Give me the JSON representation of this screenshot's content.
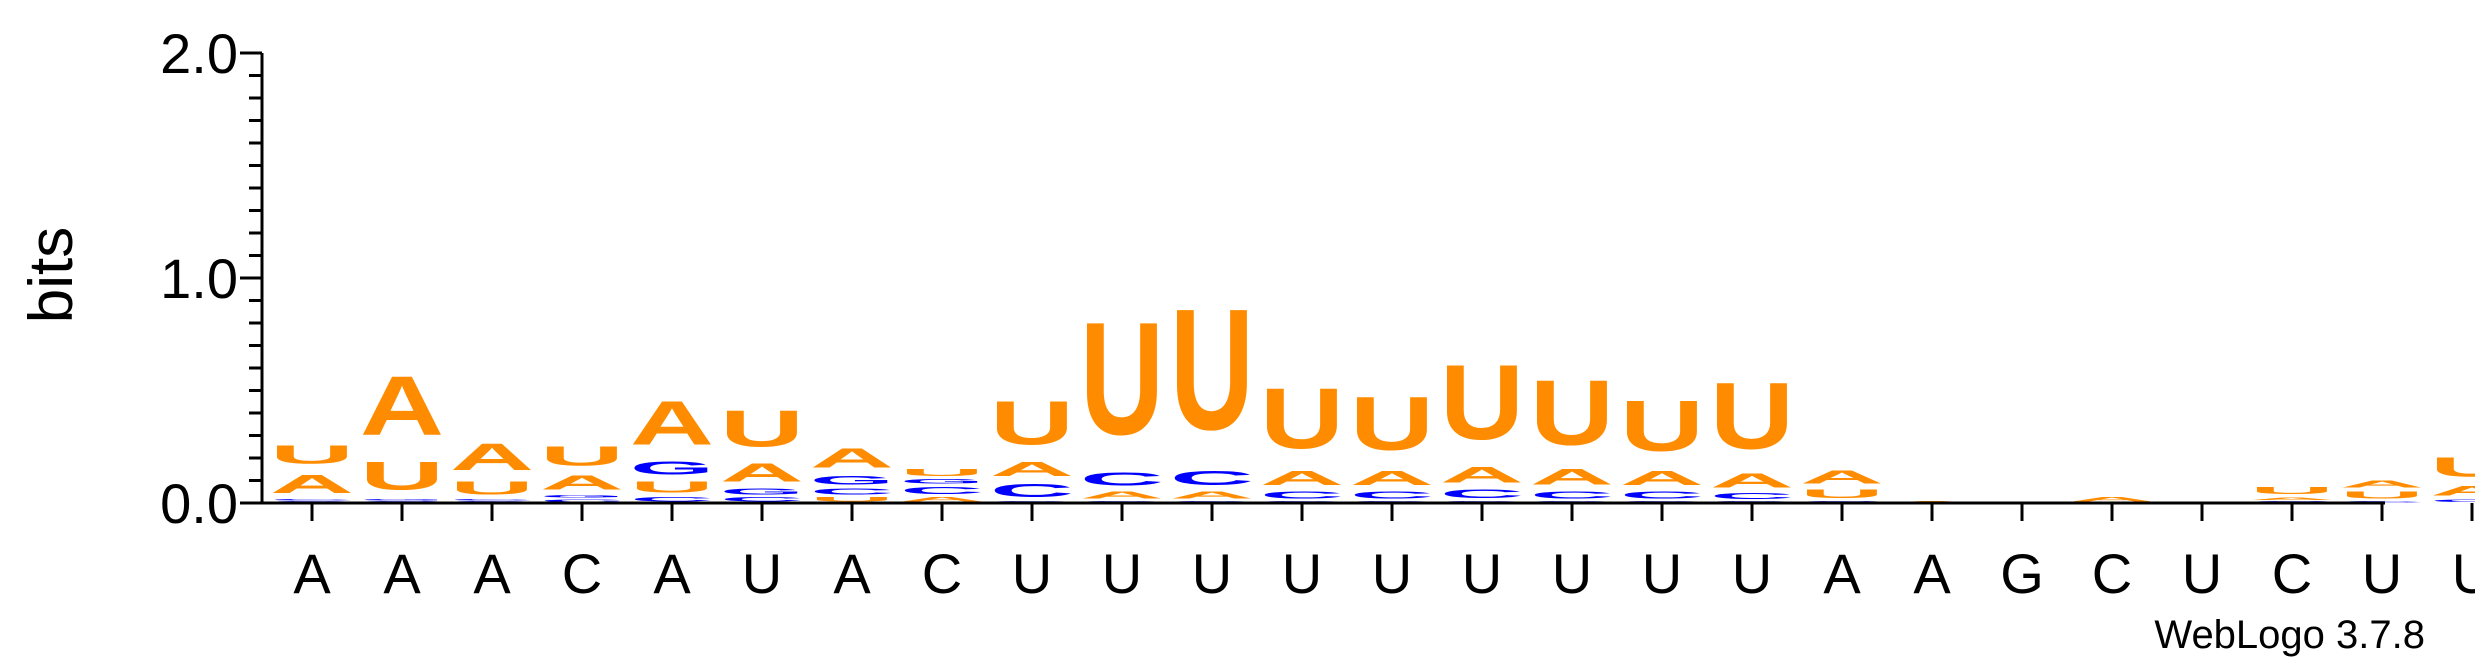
{
  "chart_data": {
    "type": "sequence-logo",
    "ylabel": "bits",
    "ylim": [
      0,
      2.0
    ],
    "yticks": [
      "0.0",
      "1.0",
      "2.0"
    ],
    "footer": "WebLogo 3.7.8",
    "colors": {
      "A": "#ff8c00",
      "U": "#ff8c00",
      "C": "#0000ff",
      "G": "#0000ff"
    },
    "positions": [
      {
        "label": "A",
        "stack": [
          {
            "base": "G",
            "bits": 0.01
          },
          {
            "base": "C",
            "bits": 0.01
          },
          {
            "base": "A",
            "bits": 0.13
          },
          {
            "base": "U",
            "bits": 0.13
          }
        ]
      },
      {
        "label": "A",
        "stack": [
          {
            "base": "C",
            "bits": 0.01
          },
          {
            "base": "G",
            "bits": 0.01
          },
          {
            "base": "U",
            "bits": 0.2
          },
          {
            "base": "A",
            "bits": 0.42
          }
        ]
      },
      {
        "label": "A",
        "stack": [
          {
            "base": "G",
            "bits": 0.01
          },
          {
            "base": "C",
            "bits": 0.01
          },
          {
            "base": "U",
            "bits": 0.09
          },
          {
            "base": "A",
            "bits": 0.19
          }
        ]
      },
      {
        "label": "C",
        "stack": [
          {
            "base": "C",
            "bits": 0.02
          },
          {
            "base": "G",
            "bits": 0.02
          },
          {
            "base": "A",
            "bits": 0.1
          },
          {
            "base": "U",
            "bits": 0.14
          }
        ]
      },
      {
        "label": "A",
        "stack": [
          {
            "base": "C",
            "bits": 0.03
          },
          {
            "base": "U",
            "bits": 0.08
          },
          {
            "base": "G",
            "bits": 0.09
          },
          {
            "base": "A",
            "bits": 0.31
          }
        ]
      },
      {
        "label": "U",
        "stack": [
          {
            "base": "C",
            "bits": 0.03
          },
          {
            "base": "G",
            "bits": 0.04
          },
          {
            "base": "A",
            "bits": 0.13
          },
          {
            "base": "U",
            "bits": 0.26
          }
        ]
      },
      {
        "label": "A",
        "stack": [
          {
            "base": "U",
            "bits": 0.03
          },
          {
            "base": "C",
            "bits": 0.04
          },
          {
            "base": "G",
            "bits": 0.06
          },
          {
            "base": "A",
            "bits": 0.14
          }
        ]
      },
      {
        "label": "C",
        "stack": [
          {
            "base": "A",
            "bits": 0.03
          },
          {
            "base": "C",
            "bits": 0.05
          },
          {
            "base": "G",
            "bits": 0.03
          },
          {
            "base": "U",
            "bits": 0.05
          }
        ]
      },
      {
        "label": "U",
        "stack": [
          {
            "base": "G",
            "bits": 0.01
          },
          {
            "base": "C",
            "bits": 0.09
          },
          {
            "base": "A",
            "bits": 0.1
          },
          {
            "base": "U",
            "bits": 0.31
          }
        ]
      },
      {
        "label": "U",
        "stack": [
          {
            "base": "G",
            "bits": 0.01
          },
          {
            "base": "A",
            "bits": 0.05
          },
          {
            "base": "C",
            "bits": 0.09
          },
          {
            "base": "U",
            "bits": 0.8
          }
        ]
      },
      {
        "label": "U",
        "stack": [
          {
            "base": "G",
            "bits": 0.01
          },
          {
            "base": "A",
            "bits": 0.05
          },
          {
            "base": "C",
            "bits": 0.1
          },
          {
            "base": "U",
            "bits": 0.86
          }
        ]
      },
      {
        "label": "U",
        "stack": [
          {
            "base": "G",
            "bits": 0.01
          },
          {
            "base": "C",
            "bits": 0.05
          },
          {
            "base": "A",
            "bits": 0.1
          },
          {
            "base": "U",
            "bits": 0.43
          }
        ]
      },
      {
        "label": "U",
        "stack": [
          {
            "base": "G",
            "bits": 0.01
          },
          {
            "base": "C",
            "bits": 0.05
          },
          {
            "base": "A",
            "bits": 0.1
          },
          {
            "base": "U",
            "bits": 0.38
          }
        ]
      },
      {
        "label": "U",
        "stack": [
          {
            "base": "G",
            "bits": 0.01
          },
          {
            "base": "C",
            "bits": 0.06
          },
          {
            "base": "A",
            "bits": 0.11
          },
          {
            "base": "U",
            "bits": 0.53
          }
        ]
      },
      {
        "label": "U",
        "stack": [
          {
            "base": "G",
            "bits": 0.01
          },
          {
            "base": "C",
            "bits": 0.05
          },
          {
            "base": "A",
            "bits": 0.11
          },
          {
            "base": "U",
            "bits": 0.46
          }
        ]
      },
      {
        "label": "U",
        "stack": [
          {
            "base": "G",
            "bits": 0.01
          },
          {
            "base": "C",
            "bits": 0.05
          },
          {
            "base": "A",
            "bits": 0.1
          },
          {
            "base": "U",
            "bits": 0.36
          }
        ]
      },
      {
        "label": "U",
        "stack": [
          {
            "base": "G",
            "bits": 0.01
          },
          {
            "base": "C",
            "bits": 0.04
          },
          {
            "base": "A",
            "bits": 0.1
          },
          {
            "base": "U",
            "bits": 0.47
          }
        ]
      },
      {
        "label": "A",
        "stack": [
          {
            "base": "C",
            "bits": 0.01
          },
          {
            "base": "U",
            "bits": 0.06
          },
          {
            "base": "A",
            "bits": 0.09
          }
        ]
      },
      {
        "label": "A",
        "stack": [
          {
            "base": "A",
            "bits": 0.01
          }
        ]
      },
      {
        "label": "G",
        "stack": []
      },
      {
        "label": "C",
        "stack": [
          {
            "base": "A",
            "bits": 0.03
          }
        ]
      },
      {
        "label": "U",
        "stack": []
      },
      {
        "label": "C",
        "stack": [
          {
            "base": "C",
            "bits": 0.01
          },
          {
            "base": "A",
            "bits": 0.02
          },
          {
            "base": "U",
            "bits": 0.05
          }
        ]
      },
      {
        "label": "U",
        "stack": [
          {
            "base": "C",
            "bits": 0.01
          },
          {
            "base": "U",
            "bits": 0.05
          },
          {
            "base": "A",
            "bits": 0.05
          }
        ]
      },
      {
        "label": "U",
        "stack": [
          {
            "base": "C",
            "bits": 0.02
          },
          {
            "base": "A",
            "bits": 0.07
          },
          {
            "base": "U",
            "bits": 0.14
          }
        ]
      }
    ]
  }
}
